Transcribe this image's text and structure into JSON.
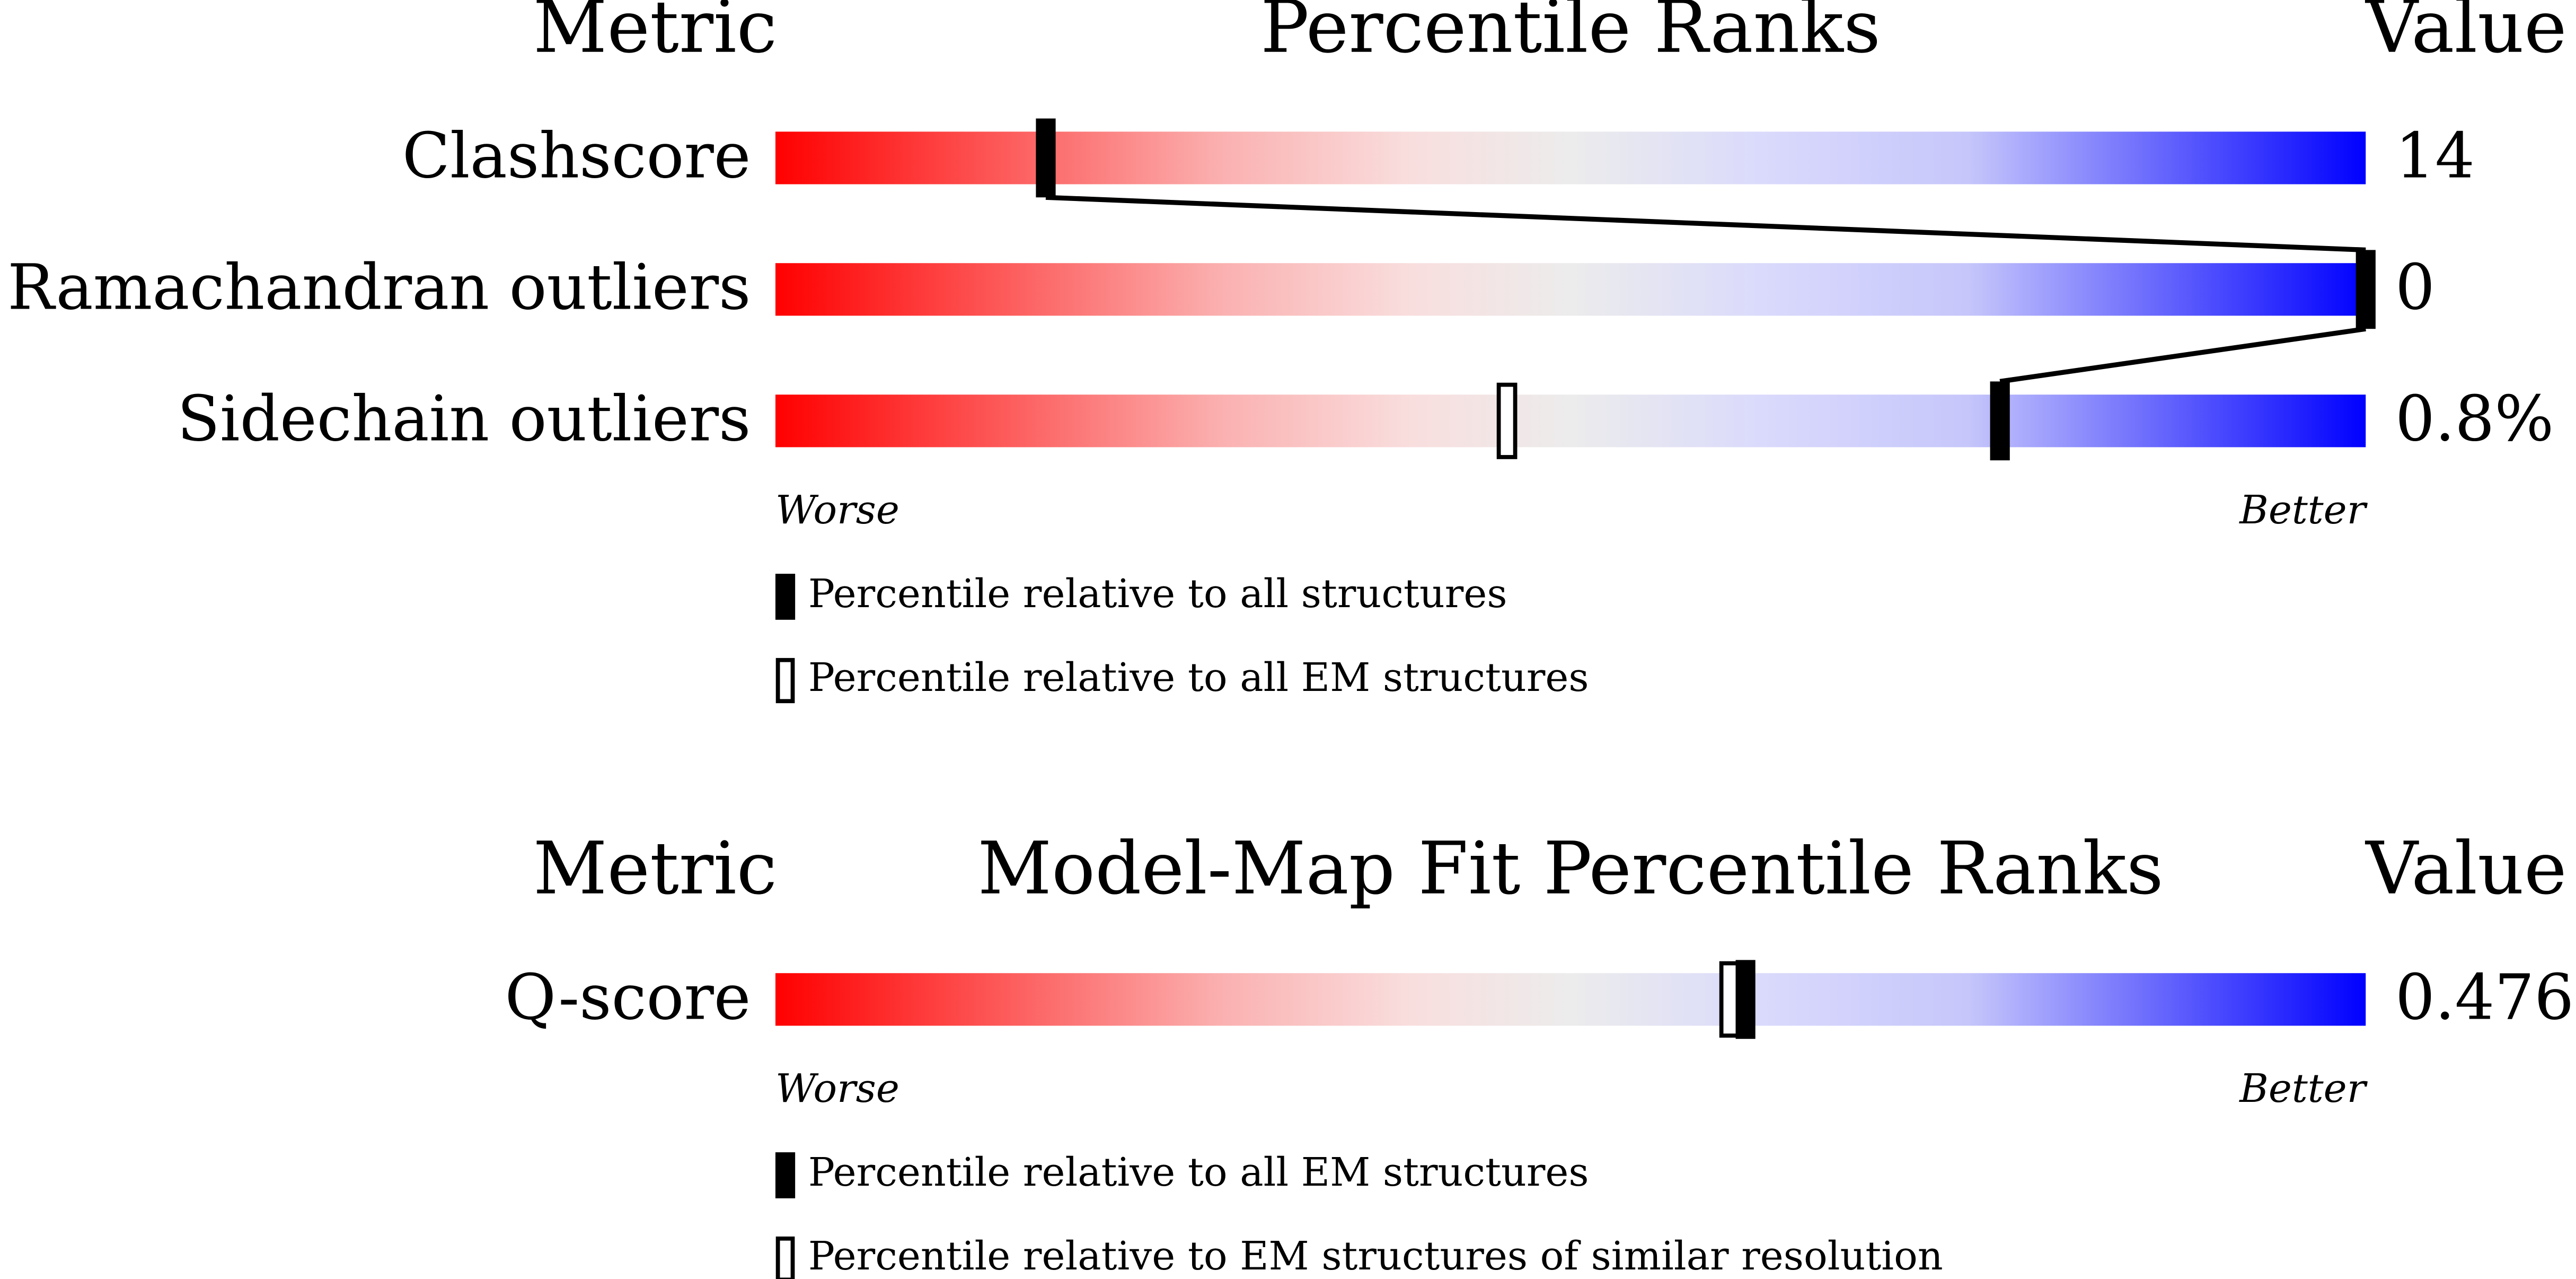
{
  "percentile_range": [
    0,
    100
  ],
  "panels": [
    {
      "header": {
        "metric": "Metric",
        "title": "Percentile Ranks",
        "value": "Value"
      },
      "rows": [
        {
          "metric": "Clashscore",
          "value": "14",
          "percentile_all": 17
        },
        {
          "metric": "Ramachandran outliers",
          "value": "0",
          "percentile_all": 100
        },
        {
          "metric": "Sidechain outliers",
          "value": "0.8%",
          "percentile_all": 77,
          "percentile_em": 46
        }
      ],
      "worse": "Worse",
      "better": "Better",
      "legend": [
        "Percentile relative to all structures",
        "Percentile relative to all EM structures"
      ]
    },
    {
      "header": {
        "metric": "Metric",
        "title": "Model-Map Fit Percentile Ranks",
        "value": "Value"
      },
      "rows": [
        {
          "metric": "Q-score",
          "value": "0.476",
          "percentile_all": 61,
          "percentile_em": 60
        }
      ],
      "worse": "Worse",
      "better": "Better",
      "legend": [
        "Percentile relative to all EM structures",
        "Percentile relative to EM structures of similar resolution"
      ]
    }
  ]
}
